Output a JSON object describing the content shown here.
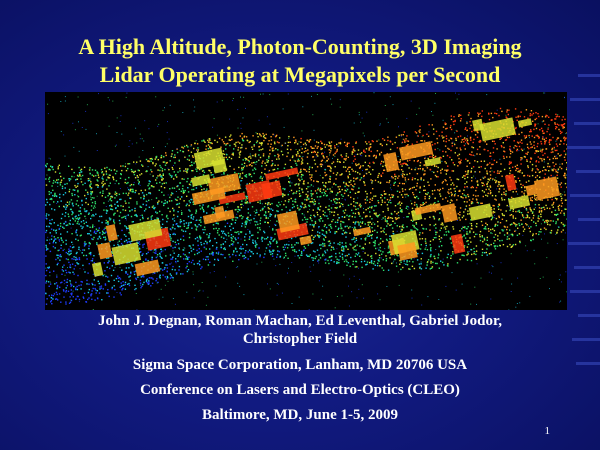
{
  "slide": {
    "title_line1": "A High Altitude, Photon-Counting, 3D Imaging",
    "title_line2": "Lidar Operating at Megapixels per Second",
    "authors_line1": "John J. Degnan, Roman Machan, Ed Leventhal, Gabriel Jodor,",
    "authors_line2": "Christopher Field",
    "affiliation": "Sigma Space Corporation, Lanham, MD 20706 USA",
    "conference": "Conference on Lasers and Electro-Optics (CLEO)",
    "location_date": "Baltimore, MD, June 1-5, 2009",
    "page_number": "1"
  },
  "colors": {
    "background": "#111a80",
    "title": "#ffff66",
    "body_text": "#ffffff",
    "lidar_palette": [
      "#1f3cff",
      "#18c8e0",
      "#2ee06a",
      "#d8e030",
      "#ff9a20",
      "#ff3a10"
    ]
  }
}
